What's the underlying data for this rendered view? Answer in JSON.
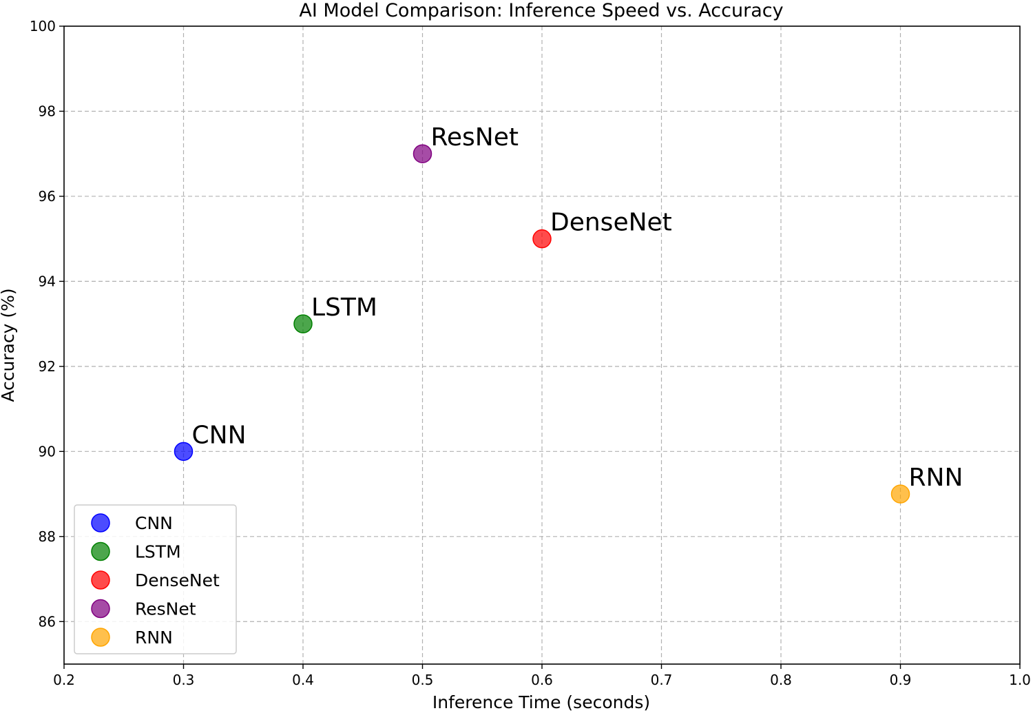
{
  "chart_data": {
    "type": "scatter",
    "title": "AI Model Comparison: Inference Speed vs. Accuracy",
    "xlabel": "Inference Time (seconds)",
    "ylabel": "Accuracy (%)",
    "xlim": [
      0.2,
      1.0
    ],
    "ylim": [
      85,
      100
    ],
    "xticks": [
      0.2,
      0.3,
      0.4,
      0.5,
      0.6,
      0.7,
      0.8,
      0.9,
      1.0
    ],
    "xtick_labels": [
      "0.2",
      "0.3",
      "0.4",
      "0.5",
      "0.6",
      "0.7",
      "0.8",
      "0.9",
      "1.0"
    ],
    "yticks": [
      86,
      88,
      90,
      92,
      94,
      96,
      98,
      100
    ],
    "ytick_labels": [
      "86",
      "88",
      "90",
      "92",
      "94",
      "96",
      "98",
      "100"
    ],
    "grid": true,
    "legend_position": "lower-left",
    "series": [
      {
        "name": "CNN",
        "x": 0.3,
        "y": 90,
        "color": "#0000ff",
        "label": "CNN"
      },
      {
        "name": "LSTM",
        "x": 0.4,
        "y": 93,
        "color": "#008000",
        "label": "LSTM"
      },
      {
        "name": "DenseNet",
        "x": 0.6,
        "y": 95,
        "color": "#ff0000",
        "label": "DenseNet"
      },
      {
        "name": "ResNet",
        "x": 0.5,
        "y": 97,
        "color": "#800080",
        "label": "ResNet"
      },
      {
        "name": "RNN",
        "x": 0.9,
        "y": 89,
        "color": "#ffa500",
        "label": "RNN"
      }
    ]
  }
}
